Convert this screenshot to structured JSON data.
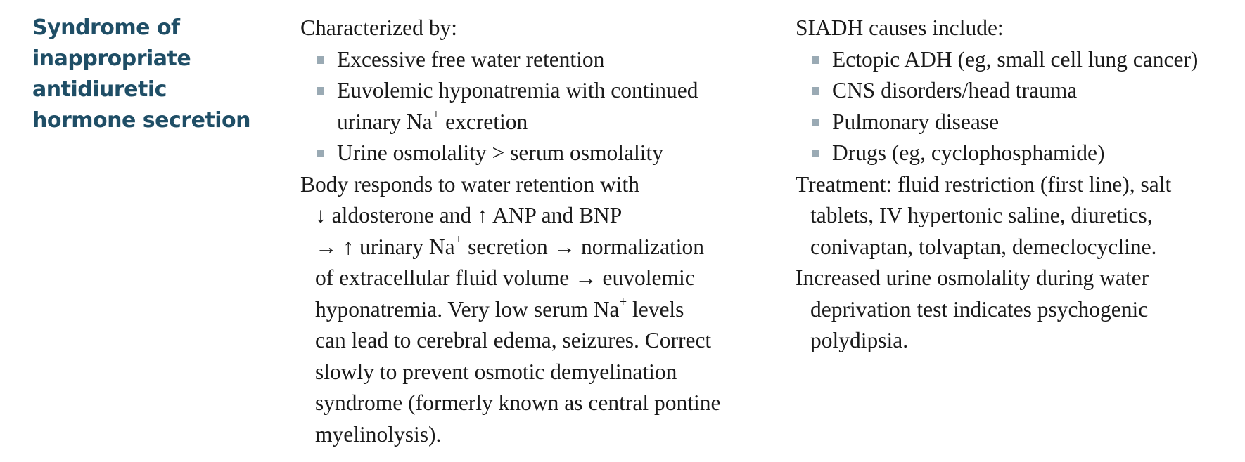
{
  "heading": {
    "lines": [
      "Syndrome of",
      "inappropriate",
      "antidiuretic",
      "hormone secretion"
    ]
  },
  "middle": {
    "intro": "Characterized by:",
    "bullets": {
      "b1": "Excessive free water retention",
      "b2_line1": "Euvolemic hyponatremia with continued",
      "b2_line2_pre": "urinary Na",
      "b2_line2_sup": "+",
      "b2_line2_post": " excretion",
      "b3": "Urine osmolality > serum osmolality"
    },
    "para": {
      "l1": "Body responds to water retention with",
      "l2": "↓ aldosterone and ↑ ANP and BNP",
      "l3_pre": "→ ↑ urinary Na",
      "l3_sup": "+",
      "l3_post": " secretion → normalization",
      "l4": "of extracellular fluid volume → euvolemic",
      "l5_pre": "hyponatremia. Very low serum Na",
      "l5_sup": "+",
      "l5_post": " levels",
      "l6": "can lead to cerebral edema, seizures. Correct",
      "l7": "slowly to prevent osmotic demyelination",
      "l8": "syndrome (formerly known as central pontine",
      "l9": "myelinolysis)."
    }
  },
  "right": {
    "intro": "SIADH causes include:",
    "bullets": [
      "Ectopic ADH (eg, small cell lung cancer)",
      "CNS disorders/head trauma",
      "Pulmonary disease",
      "Drugs (eg, cyclophosphamide)"
    ],
    "treatment": {
      "l1": "Treatment: fluid restriction (first line), salt",
      "l2": "tablets, IV hypertonic saline, diuretics,",
      "l3": "conivaptan, tolvaptan, demeclocycline."
    },
    "osmolality": {
      "l1": "Increased urine osmolality during water",
      "l2": "deprivation test indicates psychogenic",
      "l3": "polydipsia."
    }
  }
}
